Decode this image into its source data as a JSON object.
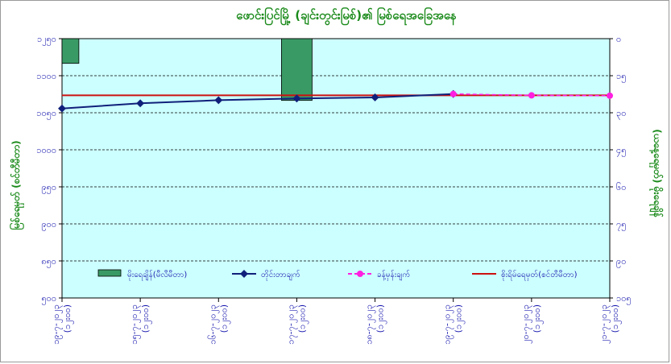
{
  "chart_data": {
    "type": "line",
    "title": "ဖောင်းပြင်မြို့ (ချင်းတွင်းမြစ်)၏ မြစ်ရေအခြေအနေ",
    "ylabel_left": "မြစ်ရေမှတ် (စင်တီမီတာ)",
    "ylabel_right": "(ယနေ့ရေမှတ်) မိုးရေချိန်",
    "ylim_left": [
      500,
      1250
    ],
    "yticks_left": [
      "၁၂၅၀",
      "၁၁၀၀",
      "၁၀၅၀",
      "၁၀၀၀",
      "၉၅၀",
      "၉၀၀",
      "၈၅၀",
      "၅၀၀"
    ],
    "ylim_right": [
      0,
      105
    ],
    "yticks_right": [
      "၀",
      "၁၅",
      "၃၀",
      "၄၅",
      "၆၀",
      "၇၅",
      "၉၀",
      "၁၀၅"
    ],
    "categories": [
      {
        "date": "၁၉-၇-၂၀၂၃",
        "time": "(၁၂း၀၀)"
      },
      {
        "date": "၁၅-၇-၂၀၂၃",
        "time": "(၁၂း၀၀)"
      },
      {
        "date": "၁၆-၇-၂၀၂၃",
        "time": "(၁၂း၀၀)"
      },
      {
        "date": "၁၇-၇-၂၀၂၃",
        "time": "(၁၂း၀၀)"
      },
      {
        "date": "၁၈-၇-၂၀၂၃",
        "time": "(၁၂း၀၀)"
      },
      {
        "date": "၁၉-၇-၂၀၂၃",
        "time": "(၁၂း၀၀)"
      },
      {
        "date": "၂၀-၇-၂၀၂၃",
        "time": "(၁၂း၀၀)"
      },
      {
        "date": "၂၁-၇-၂၀၂၃",
        "time": "(၁၂း၀၀)"
      }
    ],
    "series": [
      {
        "name": "မိုးရေချိန်(မီလီမီတာ)",
        "kind": "bar",
        "axis": "right",
        "color": "#3a9a66",
        "values": [
          10,
          0,
          0,
          25,
          0,
          0,
          0,
          0
        ]
      },
      {
        "name": "တိုင်းတာချက်",
        "kind": "line",
        "axis": "left",
        "color": "#10207a",
        "values": [
          1048,
          1063,
          1072,
          1077,
          1080,
          1090,
          null,
          null
        ]
      },
      {
        "name": "ခန့်မှန်းချက်",
        "kind": "line-dashed",
        "axis": "left",
        "color": "#ff20e0",
        "values": [
          null,
          null,
          null,
          null,
          null,
          1090,
          1086,
          1085
        ]
      },
      {
        "name": "စိုးရိမ်ရေမှတ်(စင်တီမီတာ)",
        "kind": "hline",
        "axis": "left",
        "color": "#cc1010",
        "value": 1086
      }
    ],
    "plot_background": "#ccffff",
    "grid": true,
    "legend": "bottom-inside"
  }
}
